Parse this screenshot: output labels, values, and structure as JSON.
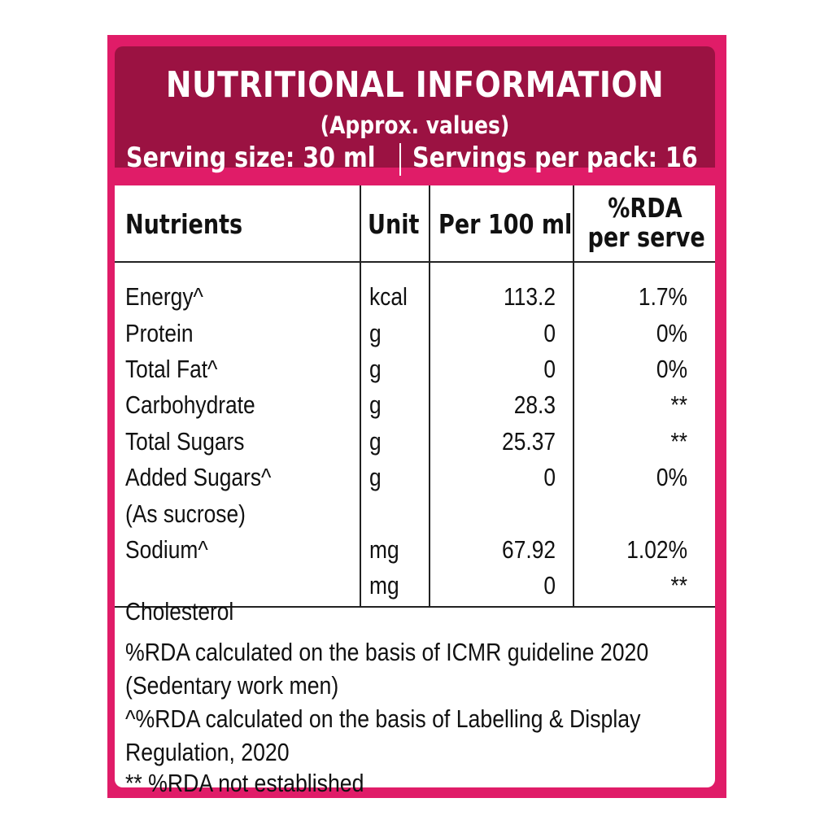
{
  "header": {
    "title": "NUTRITIONAL INFORMATION",
    "subtitle": "(Approx. values)"
  },
  "serving": {
    "size": "Serving size: 30 ml",
    "per_pack": "Servings per pack: 16"
  },
  "table": {
    "columns": [
      "Nutrients",
      "Unit",
      "Per 100 ml",
      "%RDA",
      "per serve"
    ],
    "rows": [
      {
        "nutrient": "Energy^",
        "unit": "kcal",
        "per100": "113.2",
        "rda": "1.7%"
      },
      {
        "nutrient": "Protein",
        "unit": "g",
        "per100": "0",
        "rda": "0%"
      },
      {
        "nutrient": "Total Fat^",
        "unit": "g",
        "per100": "0",
        "rda": "0%"
      },
      {
        "nutrient": "Carbohydrate",
        "unit": "g",
        "per100": "28.3",
        "rda": "**"
      },
      {
        "nutrient": "Total Sugars",
        "unit": "g",
        "per100": "25.37",
        "rda": "**"
      },
      {
        "nutrient": "Added Sugars^",
        "unit": "g",
        "per100": "0",
        "rda": "0%"
      },
      {
        "nutrient": "(As sucrose)",
        "unit": "",
        "per100": "",
        "rda": ""
      },
      {
        "nutrient": "Sodium^",
        "unit": "mg",
        "per100": "67.92",
        "rda": "1.02%"
      },
      {
        "nutrient": "Cholesterol",
        "unit": "mg",
        "per100": "0",
        "rda": "**"
      }
    ]
  },
  "notes": [
    "%RDA calculated on the basis of ICMR guideline 2020",
    "(Sedentary work men)",
    "^%RDA  calculated on the basis of Labelling & Display",
    "Regulation, 2020",
    "** %RDA not established"
  ],
  "colors": {
    "frame": "#e01c68",
    "header": "#9b1242",
    "text": "#111111"
  }
}
